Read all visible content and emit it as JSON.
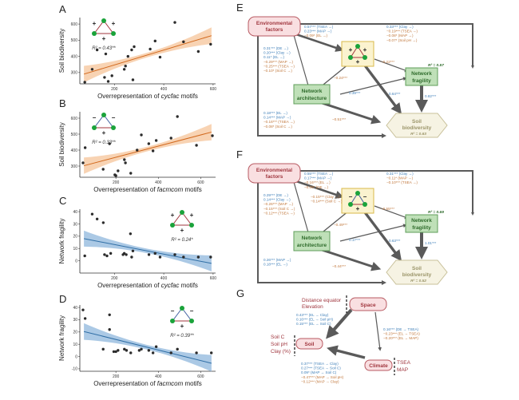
{
  "chart_data": [
    {
      "panel": "A",
      "type": "scatter",
      "xlabel_prefix": "Overrepresentation of ",
      "xlabel_italic": "cycfac",
      "xlabel_suffix": " motifs",
      "ylabel": "Soil biodiversity",
      "xlim": [
        60,
        610
      ],
      "ylim": [
        230,
        640
      ],
      "xticks": [
        200,
        400,
        600
      ],
      "yticks": [
        300,
        400,
        500,
        600
      ],
      "annotation": "R² = 0.43**",
      "motif_signs": [
        "+",
        "+",
        "+"
      ],
      "motif_edges": [
        "#a0363e",
        "#a0363e",
        "#a0363e"
      ],
      "fit": {
        "slope": 0.46,
        "intercept": 255,
        "color": "#d2691e",
        "band": "#f5c49a"
      },
      "points": [
        [
          80,
          240
        ],
        [
          110,
          320
        ],
        [
          130,
          440
        ],
        [
          160,
          270
        ],
        [
          165,
          415
        ],
        [
          175,
          245
        ],
        [
          190,
          280
        ],
        [
          240,
          320
        ],
        [
          245,
          340
        ],
        [
          255,
          400
        ],
        [
          270,
          440
        ],
        [
          275,
          255
        ],
        [
          280,
          460
        ],
        [
          345,
          445
        ],
        [
          365,
          495
        ],
        [
          385,
          395
        ],
        [
          445,
          610
        ],
        [
          480,
          490
        ],
        [
          540,
          430
        ],
        [
          590,
          475
        ]
      ]
    },
    {
      "panel": "B",
      "type": "scatter",
      "xlabel_prefix": "Overrepresentation of ",
      "xlabel_italic": "facmcom",
      "xlabel_suffix": " motifs",
      "ylabel": "Soil biodiversity",
      "xlim": [
        30,
        670
      ],
      "ylim": [
        230,
        640
      ],
      "xticks": [
        200,
        400,
        600
      ],
      "yticks": [
        300,
        400,
        500,
        600
      ],
      "annotation": "R² = 0.33**",
      "motif_signs": [
        "−",
        "−",
        "+"
      ],
      "motif_edges": [
        "#3f5fa0",
        "#3f5fa0",
        "#a0363e"
      ],
      "fit": {
        "slope": 0.35,
        "intercept": 285,
        "color": "#d2691e",
        "band": "#f5c49a"
      },
      "points": [
        [
          45,
          320
        ],
        [
          55,
          415
        ],
        [
          140,
          280
        ],
        [
          170,
          440
        ],
        [
          195,
          245
        ],
        [
          200,
          240
        ],
        [
          210,
          270
        ],
        [
          240,
          340
        ],
        [
          245,
          320
        ],
        [
          270,
          255
        ],
        [
          300,
          400
        ],
        [
          320,
          495
        ],
        [
          355,
          440
        ],
        [
          375,
          395
        ],
        [
          390,
          460
        ],
        [
          460,
          475
        ],
        [
          490,
          610
        ],
        [
          580,
          430
        ],
        [
          655,
          490
        ]
      ]
    },
    {
      "panel": "C",
      "type": "scatter",
      "xlabel_prefix": "Overrepresentation of ",
      "xlabel_italic": "cycfac",
      "xlabel_suffix": " motifs",
      "ylabel": "Network fragility",
      "xlim": [
        60,
        610
      ],
      "ylim": [
        -10,
        42
      ],
      "xticks": [
        200,
        400,
        600
      ],
      "yticks": [
        0,
        10,
        20,
        30,
        40
      ],
      "annotation": "R² = 0.24*",
      "motif_signs": [
        "+",
        "+",
        "+"
      ],
      "motif_edges": [
        "#a0363e",
        "#a0363e",
        "#a0363e"
      ],
      "fit": {
        "slope": -0.039,
        "intercept": 21,
        "color": "#2f6ea5",
        "band": "#8fb7dc"
      },
      "points": [
        [
          80,
          4
        ],
        [
          110,
          38
        ],
        [
          130,
          34
        ],
        [
          155,
          31
        ],
        [
          160,
          5
        ],
        [
          170,
          4
        ],
        [
          185,
          6
        ],
        [
          235,
          5
        ],
        [
          240,
          6
        ],
        [
          248,
          5
        ],
        [
          265,
          22
        ],
        [
          270,
          3
        ],
        [
          275,
          8
        ],
        [
          340,
          5
        ],
        [
          365,
          6
        ],
        [
          385,
          3
        ],
        [
          445,
          5
        ],
        [
          480,
          3
        ],
        [
          540,
          3
        ],
        [
          590,
          3
        ]
      ]
    },
    {
      "panel": "D",
      "type": "scatter",
      "xlabel_prefix": "Overrepresentation of ",
      "xlabel_italic": "facmcom",
      "xlabel_suffix": " motifs",
      "ylabel": "Network fragility",
      "xlim": [
        30,
        670
      ],
      "ylim": [
        -12,
        42
      ],
      "xticks": [
        200,
        400,
        600
      ],
      "yticks": [
        -10,
        0,
        10,
        20,
        30,
        40
      ],
      "annotation": "R² = 0.39**",
      "motif_signs": [
        "−",
        "−",
        "+"
      ],
      "motif_edges": [
        "#3f5fa0",
        "#3f5fa0",
        "#a0363e"
      ],
      "fit": {
        "slope": -0.043,
        "intercept": 22.5,
        "color": "#2f6ea5",
        "band": "#8fb7dc"
      },
      "points": [
        [
          45,
          38
        ],
        [
          55,
          31
        ],
        [
          140,
          6
        ],
        [
          170,
          34
        ],
        [
          170,
          22
        ],
        [
          190,
          4
        ],
        [
          200,
          4
        ],
        [
          210,
          5
        ],
        [
          240,
          6
        ],
        [
          250,
          5
        ],
        [
          270,
          3
        ],
        [
          310,
          5
        ],
        [
          320,
          6
        ],
        [
          355,
          5
        ],
        [
          375,
          3
        ],
        [
          390,
          8
        ],
        [
          460,
          3
        ],
        [
          490,
          6
        ],
        [
          580,
          3
        ],
        [
          650,
          3
        ]
      ]
    }
  ],
  "diagrams": {
    "E": {
      "label": "E",
      "nodes": {
        "env": "Environmental factors",
        "arch_1": "Network",
        "arch_2": "architecture",
        "frag_1": "Network",
        "frag_2": "fragility",
        "bio_1": "Soil",
        "bio_2": "biodiversity"
      },
      "frag_r2": "R² = 0.57",
      "bio_r2": "R² = 0.63",
      "motif_signs": [
        "+",
        "+",
        "+"
      ],
      "env_to_motif": [
        {
          "t": "0.57*** (TSEA →)",
          "s": "pos"
        },
        {
          "t": "0.23*** (MAP →)",
          "s": "pos"
        },
        {
          "t": "−0.09* (EL →)",
          "s": "neg"
        }
      ],
      "env_to_frag": [
        {
          "t": "0.33*** (Clay →)",
          "s": "pos"
        },
        {
          "t": "−0.19*** (TSEA →)",
          "s": "neg"
        },
        {
          "t": "−0.08* (MAP →)",
          "s": "neg"
        },
        {
          "t": "−0.07* (Soil pH →)",
          "s": "neg"
        }
      ],
      "env_to_arch": [
        {
          "t": "0.31*** (DE →)",
          "s": "pos"
        },
        {
          "t": "0.20*** (Clay →)",
          "s": "pos"
        },
        {
          "t": "0.11* (EL →)",
          "s": "pos"
        },
        {
          "t": "−0.29*** (MAP →)",
          "s": "neg"
        },
        {
          "t": "−0.25*** (TSEA →)",
          "s": "neg"
        },
        {
          "t": "−0.10* (Soil C →)",
          "s": "neg"
        }
      ],
      "env_to_bio": [
        {
          "t": "0.18*** (EL →)",
          "s": "pos"
        },
        {
          "t": "0.14*** (MAP →)",
          "s": "pos"
        },
        {
          "t": "−0.16*** (TSEA →)",
          "s": "neg"
        },
        {
          "t": "−0.08* (Soil C →)",
          "s": "neg"
        }
      ],
      "motif_to_arch": {
        "t": "−0.24***",
        "s": "neg"
      },
      "motif_to_frag": {
        "t": "−0.22***",
        "s": "neg"
      },
      "arch_to_frag": {
        "t": "0.39***",
        "s": "pos"
      },
      "motif_to_bio": {
        "t": "0.64***",
        "s": "pos"
      },
      "frag_to_bio": {
        "t": "0.82***",
        "s": "pos"
      },
      "arch_to_bio": {
        "t": "−0.51***",
        "s": "neg"
      }
    },
    "F": {
      "label": "F",
      "nodes": {
        "env": "Environmental factors",
        "arch_1": "Network",
        "arch_2": "architecture",
        "frag_1": "Network",
        "frag_2": "fragility",
        "bio_1": "Soil",
        "bio_2": "biodiversity"
      },
      "frag_r2": "R² = 0.69",
      "bio_r2": "R² = 0.52",
      "motif_signs": [
        "−",
        "−",
        "+"
      ],
      "env_to_motif": [
        {
          "t": "0.55*** (TSEA →)",
          "s": "pos"
        },
        {
          "t": "0.17*** (MAP →)",
          "s": "pos"
        },
        {
          "t": "−0.16*** (EL →)",
          "s": "neg"
        },
        {
          "t": "−0.08* (DE →)",
          "s": "neg"
        }
      ],
      "env_to_motif_side": [
        {
          "t": "−0.15*** (Clay →)",
          "s": "neg"
        },
        {
          "t": "−0.14*** (Soil C →)",
          "s": "neg"
        }
      ],
      "env_to_frag": [
        {
          "t": "0.31*** (Clay →)",
          "s": "pos"
        },
        {
          "t": "−0.11* (MAP →)",
          "s": "neg"
        },
        {
          "t": "−0.10*** (TSEA →)",
          "s": "neg"
        }
      ],
      "env_to_arch": [
        {
          "t": "0.29*** (DE →)",
          "s": "pos"
        },
        {
          "t": "0.14*** (Clay →)",
          "s": "pos"
        },
        {
          "t": "−0.26*** (MAP →)",
          "s": "neg"
        },
        {
          "t": "−0.15*** (Soil C →)",
          "s": "neg"
        },
        {
          "t": "−0.12*** (TSEA →)",
          "s": "neg"
        }
      ],
      "env_to_bio": [
        {
          "t": "0.26*** (MAP →)",
          "s": "pos"
        },
        {
          "t": "0.18*** (EL →)",
          "s": "pos"
        }
      ],
      "motif_to_arch": {
        "t": "−0.49***",
        "s": "neg"
      },
      "motif_to_frag": {
        "t": "−0.55***",
        "s": "neg"
      },
      "arch_to_frag": {
        "t": "0.17***",
        "s": "pos"
      },
      "motif_to_bio": {
        "t": "0.63***",
        "s": "pos"
      },
      "frag_to_bio": {
        "t": "1.01***",
        "s": "pos"
      },
      "arch_to_bio": {
        "t": "−0.44***",
        "s": "neg"
      }
    },
    "G": {
      "label": "G",
      "space": "Space",
      "soil": "Soil",
      "climate": "Climate",
      "space_vars": [
        "Distance equator",
        "Elevation"
      ],
      "soil_vars": [
        "Soil C",
        "Soil pH",
        "Clay (%)"
      ],
      "climate_vars": [
        "TSEA",
        "MAP"
      ],
      "space_to_soil": [
        {
          "t": "0.43*** (EL → Clay)",
          "s": "pos"
        },
        {
          "t": "0.16*** (EL → Soil pH)",
          "s": "pos"
        },
        {
          "t": "0.15*** (EL → Soil C)",
          "s": "pos"
        }
      ],
      "space_to_climate": [
        {
          "t": "0.16*** (DE → TSEA)",
          "s": "pos"
        },
        {
          "t": "−0.23*** (EL → TSEA)",
          "s": "neg"
        },
        {
          "t": "−0.20*** (EL → MAP)",
          "s": "neg"
        }
      ],
      "climate_to_soil": [
        {
          "t": "0.37*** (TSEA → Clay)",
          "s": "pos"
        },
        {
          "t": "0.27*** (TSEA → Soil C)",
          "s": "pos"
        },
        {
          "t": "0.09* (MAP → Soil C)",
          "s": "pos"
        },
        {
          "t": "−0.47*** (MAP → Soil pH)",
          "s": "neg"
        },
        {
          "t": "−0.12*** (MAP → Clay)",
          "s": "neg"
        }
      ]
    }
  },
  "panel_labels": {
    "A": "A",
    "B": "B",
    "C": "C",
    "D": "D"
  }
}
